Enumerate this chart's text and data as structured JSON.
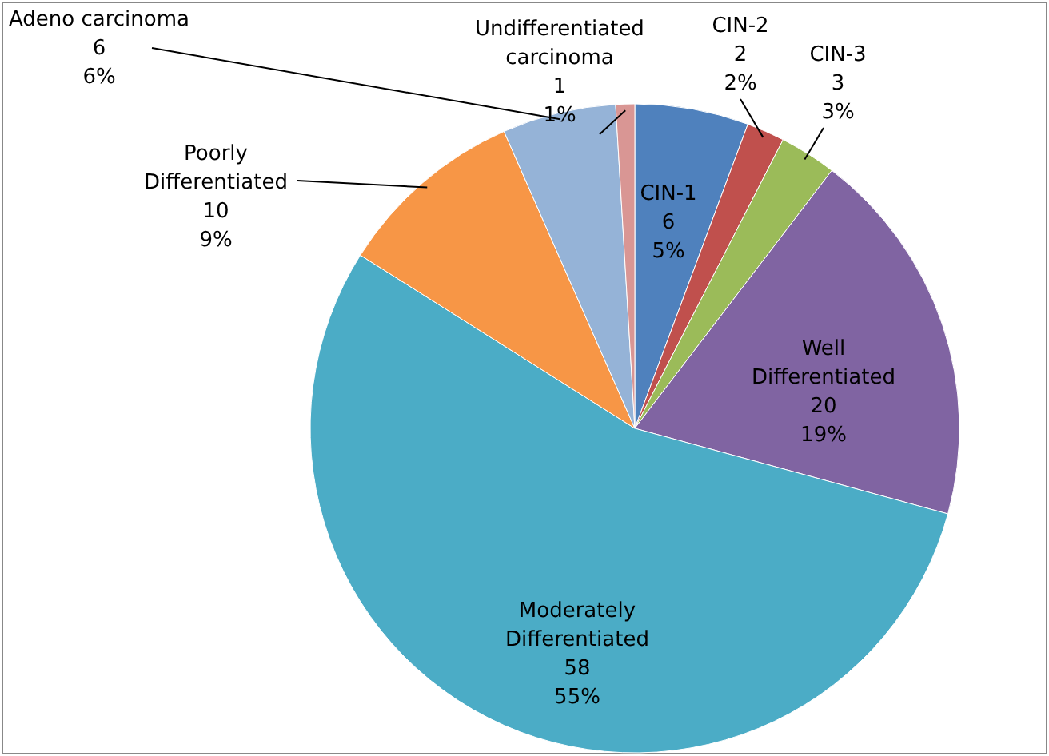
{
  "chart_data": {
    "type": "pie",
    "categories": [
      "CIN-1",
      "CIN-2",
      "CIN-3",
      "Well Differentiated",
      "Moderately Differentiated",
      "Poorly Differentiated",
      "Adeno carcinoma",
      "Undifferentiated carcinoma"
    ],
    "values": [
      6,
      2,
      3,
      20,
      58,
      10,
      6,
      1
    ],
    "colors": [
      "#4f81bd",
      "#c0504d",
      "#9bbb59",
      "#8064a2",
      "#4bacc6",
      "#f79646",
      "#95b3d7",
      "#d99694"
    ],
    "value_labels": [
      "6\n5%",
      "2\n2%",
      "3\n3%",
      "20\n19%",
      "58\n55%",
      "10\n9%",
      "6\n6%",
      "1\n1%"
    ]
  }
}
